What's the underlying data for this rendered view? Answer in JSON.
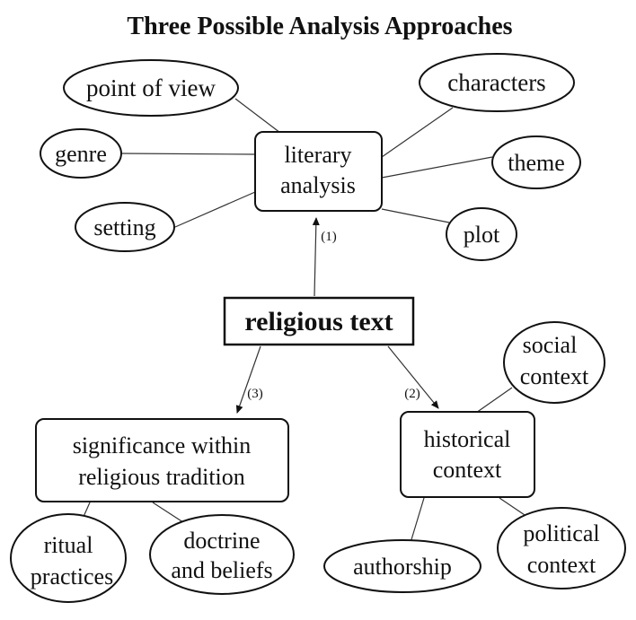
{
  "title": "Three Possible Analysis Approaches",
  "root": "religious text",
  "branches": {
    "literary": {
      "label_line1": "literary",
      "label_line2": "analysis",
      "edge_label": "(1)",
      "children": {
        "point_of_view": "point of view",
        "genre": "genre",
        "setting": "setting",
        "characters": "characters",
        "theme": "theme",
        "plot": "plot"
      }
    },
    "historical": {
      "label_line1": "historical",
      "label_line2": "context",
      "edge_label": "(2)",
      "children": {
        "social_line1": "social",
        "social_line2": "context",
        "authorship": "authorship",
        "political_line1": "political",
        "political_line2": "context"
      }
    },
    "tradition": {
      "label_line1": "significance within",
      "label_line2": "religious tradition",
      "edge_label": "(3)",
      "children": {
        "ritual_line1": "ritual",
        "ritual_line2": "practices",
        "doctrine_line1": "doctrine",
        "doctrine_line2": "and beliefs"
      }
    }
  }
}
